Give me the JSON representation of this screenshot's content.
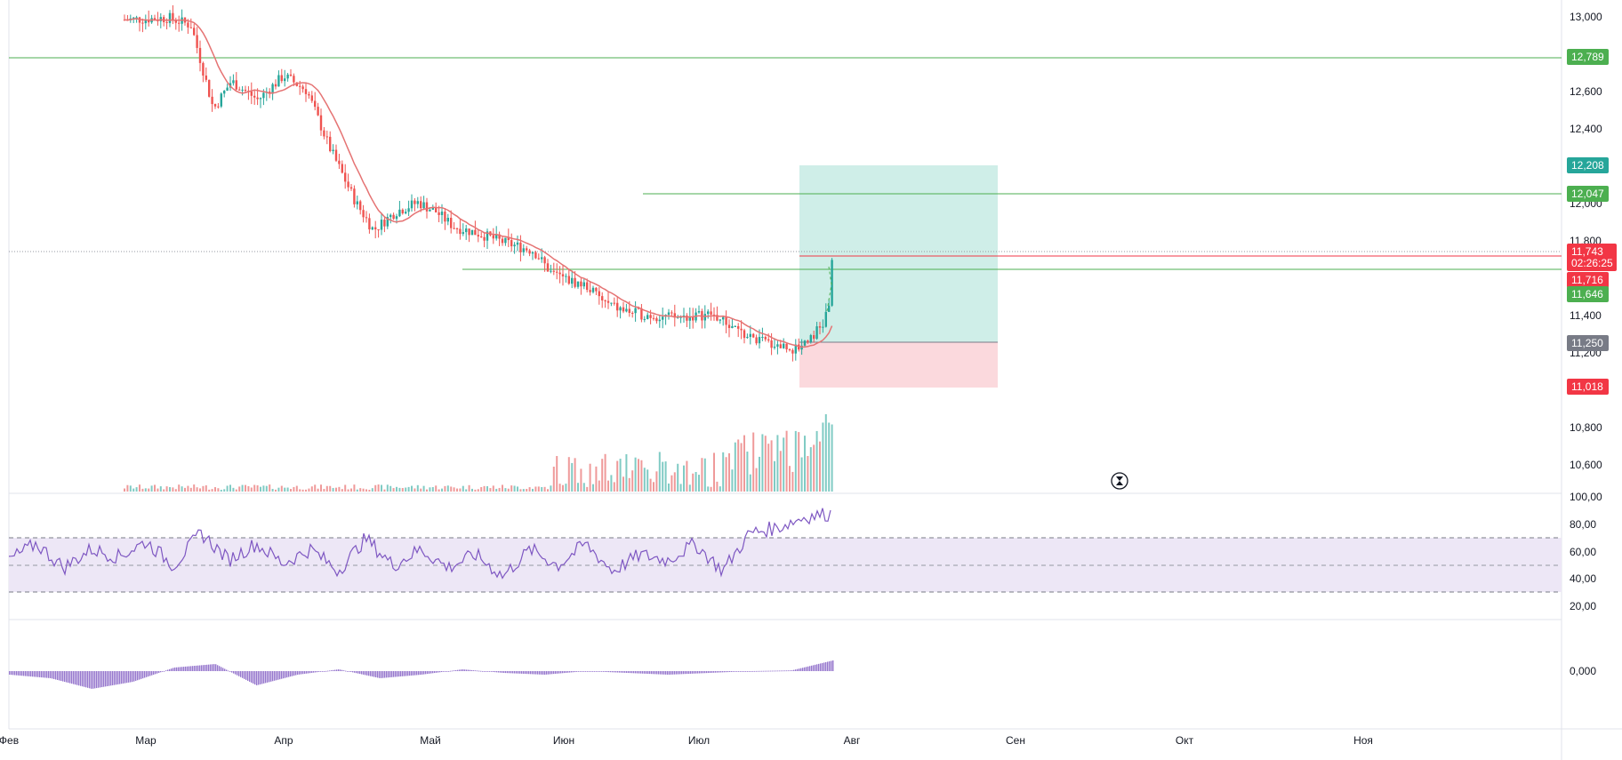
{
  "colors": {
    "bull": "#26a69a",
    "bear": "#ef5350",
    "green_line": "#4caf50",
    "ma_line": "#e57373",
    "rsi_line": "#7e57c2",
    "rsi_band": "#ede7f6",
    "osc_bar": "#9575cd",
    "tp_zone": "#cfeee8",
    "sl_zone": "#fbd9dd",
    "entry_tag": "#787b86",
    "tp_tag": "#26a69a",
    "sl_tag": "#f23645",
    "price_tag": "#f23645"
  },
  "time_axis": {
    "months": [
      "Фев",
      "Мар",
      "Апр",
      "Май",
      "Июн",
      "Июл",
      "Авг",
      "Сен",
      "Окт",
      "Ноя"
    ]
  },
  "price_axis": {
    "ticks": [
      "13,000",
      "12,600",
      "12,400",
      "12,000",
      "11,800",
      "11,400",
      "11,200",
      "10,800",
      "10,600"
    ]
  },
  "rsi_axis": {
    "ticks": [
      "100,00",
      "80,00",
      "60,00",
      "40,00",
      "20,00"
    ]
  },
  "osc_axis": {
    "ticks": [
      "0,000"
    ]
  },
  "price_tags": {
    "line_top": "12,789",
    "target": "12,208",
    "line_upper": "12,047",
    "last_price": "11,743",
    "countdown": "02:26:25",
    "prev_close": "11,716",
    "line_lower": "11,646",
    "entry": "11,250",
    "stop": "11,018"
  },
  "chart_data": [
    {
      "type": "candlestick",
      "title": "",
      "x": [
        "Фев",
        "Мар",
        "Апр",
        "Май",
        "Июн",
        "Июл",
        "Авг"
      ],
      "ylim": [
        10500,
        13050
      ],
      "series": [
        {
          "close_path": [
            [
              "Фев",
              13000
            ],
            [
              "Мар",
              12950
            ],
            [
              "Мар",
              12650
            ],
            [
              "Апр",
              12550
            ],
            [
              "Апр",
              12650
            ],
            [
              "Май",
              11950
            ],
            [
              "Май",
              11980
            ],
            [
              "Июн",
              11700
            ],
            [
              "Июн",
              11450
            ],
            [
              "Июл",
              11380
            ],
            [
              "Июл",
              11220
            ],
            [
              "Авг",
              11743
            ]
          ]
        }
      ],
      "horizontal_lines": [
        12789,
        12047,
        11743,
        11716,
        11646
      ],
      "position": {
        "entry": 11250,
        "target": 12208,
        "stop": 11018
      }
    },
    {
      "type": "line",
      "title": "",
      "ylim": [
        0,
        100
      ],
      "bands": [
        30,
        50,
        70
      ],
      "series": [
        {
          "values": [
            45,
            60,
            38,
            55,
            48,
            62,
            40,
            70,
            45,
            60,
            42,
            55,
            35,
            65,
            40,
            55,
            38,
            50,
            30,
            55,
            40,
            60,
            35,
            50,
            45,
            60,
            35,
            70,
            75,
            85,
            88
          ]
        }
      ]
    },
    {
      "type": "bar",
      "title": "",
      "ylim": [
        -1,
        1
      ],
      "series": [
        {
          "values": [
            -0.1,
            -0.2,
            -0.5,
            -0.3,
            0.1,
            0.2,
            -0.4,
            -0.1,
            0.05,
            -0.2,
            -0.1,
            0.05,
            -0.05,
            -0.1,
            0.0,
            -0.05,
            -0.1,
            -0.05,
            0.0,
            0.02,
            0.3
          ]
        }
      ]
    }
  ]
}
